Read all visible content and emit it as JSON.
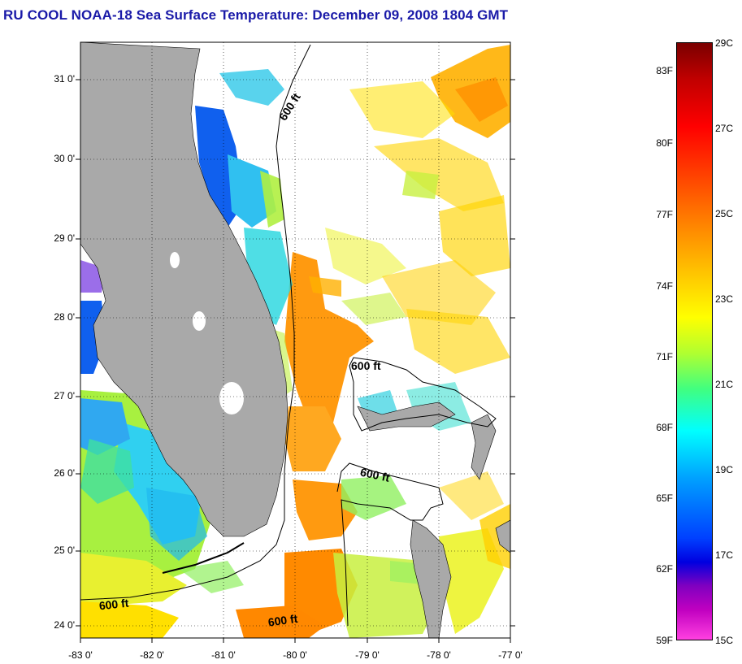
{
  "title": "RU COOL  NOAA-18  Sea Surface Temperature:  December 09, 2008 1804 GMT",
  "lat_labels": [
    "31 0'",
    "30 0'",
    "29 0'",
    "28 0'",
    "27 0'",
    "26 0'",
    "25 0'",
    "24 0'"
  ],
  "lon_labels": [
    "-83 0'",
    "-82 0'",
    "-81 0'",
    "-80 0'",
    "-79 0'",
    "-78 0'",
    "-77 0'"
  ],
  "contour_label": "600 ft",
  "colorbar": {
    "fahrenheit": [
      "83F",
      "80F",
      "77F",
      "74F",
      "71F",
      "68F",
      "65F",
      "62F",
      "59F"
    ],
    "celsius": [
      "29C",
      "27C",
      "25C",
      "23C",
      "21C",
      "19C",
      "17C",
      "15C"
    ]
  },
  "colors": {
    "title": "#1a1aa8",
    "land": "#a9a9a9",
    "cloud": "#ffffff"
  }
}
